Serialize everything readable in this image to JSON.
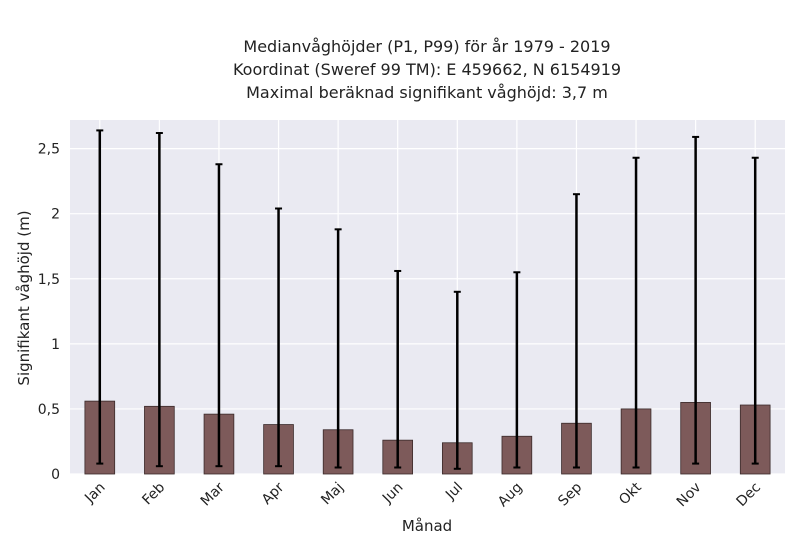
{
  "chart_data": {
    "type": "bar",
    "title_lines": [
      "Medianvåghöjder (P1, P99) för år 1979 - 2019",
      "Koordinat (Sweref 99 TM): E 459662, N 6154919",
      "Maximal beräknad signifikant våghöjd: 3,7 m"
    ],
    "xlabel": "Månad",
    "ylabel": "Signifikant våghöjd (m)",
    "categories": [
      "Jan",
      "Feb",
      "Mar",
      "Apr",
      "Maj",
      "Jun",
      "Jul",
      "Aug",
      "Sep",
      "Okt",
      "Nov",
      "Dec"
    ],
    "series": [
      {
        "values": [
          0.56,
          0.52,
          0.46,
          0.38,
          0.34,
          0.26,
          0.24,
          0.29,
          0.39,
          0.5,
          0.55,
          0.53
        ],
        "p1": [
          0.08,
          0.06,
          0.06,
          0.06,
          0.05,
          0.05,
          0.04,
          0.05,
          0.05,
          0.05,
          0.08,
          0.08
        ],
        "p99": [
          2.64,
          2.62,
          2.38,
          2.04,
          1.88,
          1.56,
          1.4,
          1.55,
          2.15,
          2.43,
          2.59,
          2.43
        ]
      }
    ],
    "ylim": [
      0,
      2.72
    ],
    "yticks": [
      0,
      0.5,
      1,
      1.5,
      2,
      2.5
    ],
    "ytick_labels": [
      "0",
      "0,5",
      "1",
      "1,5",
      "2",
      "2,5"
    ],
    "grid": true,
    "colors": {
      "bar": "#7d5a5a",
      "bar_edge": "#3a2a2a",
      "errorbar": "#000000",
      "plot_background": "#eaeaf2",
      "grid": "#ffffff"
    }
  }
}
